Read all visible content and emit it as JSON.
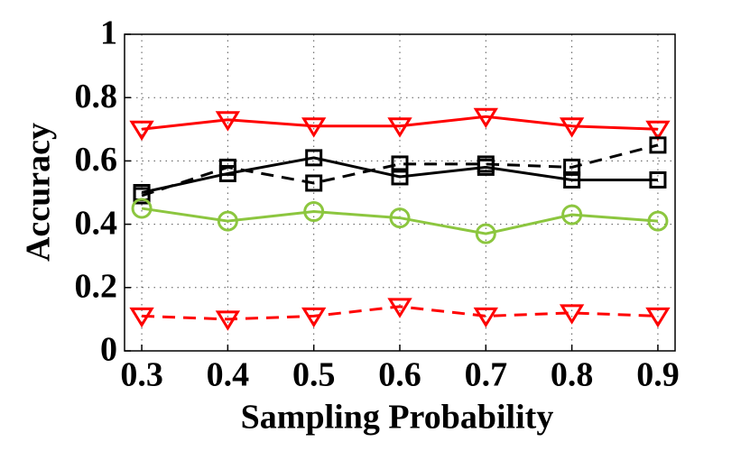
{
  "chart_data": {
    "type": "line",
    "x": [
      0.3,
      0.4,
      0.5,
      0.6,
      0.7,
      0.8,
      0.9
    ],
    "xlabel": "Sampling Probability",
    "ylabel": "Accuracy",
    "xlim": [
      0.28,
      0.92
    ],
    "ylim": [
      0,
      1
    ],
    "xticks": [
      0.3,
      0.4,
      0.5,
      0.6,
      0.7,
      0.8,
      0.9
    ],
    "yticks": [
      0,
      0.2,
      0.4,
      0.6,
      0.8,
      1
    ],
    "grid": true,
    "series": [
      {
        "color": "#ff0000",
        "dashed": false,
        "marker": "triangle-down",
        "values": [
          0.7,
          0.73,
          0.71,
          0.71,
          0.74,
          0.71,
          0.7
        ]
      },
      {
        "color": "#000000",
        "dashed": false,
        "marker": "square",
        "values": [
          0.5,
          0.56,
          0.61,
          0.55,
          0.58,
          0.54,
          0.54
        ]
      },
      {
        "color": "#000000",
        "dashed": true,
        "marker": "square",
        "values": [
          0.49,
          0.58,
          0.53,
          0.59,
          0.59,
          0.58,
          0.65
        ]
      },
      {
        "color": "#8cc63f",
        "dashed": false,
        "marker": "circle",
        "values": [
          0.45,
          0.41,
          0.44,
          0.42,
          0.37,
          0.43,
          0.41
        ]
      },
      {
        "color": "#ff0000",
        "dashed": true,
        "marker": "triangle-down",
        "values": [
          0.11,
          0.1,
          0.11,
          0.14,
          0.11,
          0.12,
          0.11
        ]
      }
    ]
  }
}
